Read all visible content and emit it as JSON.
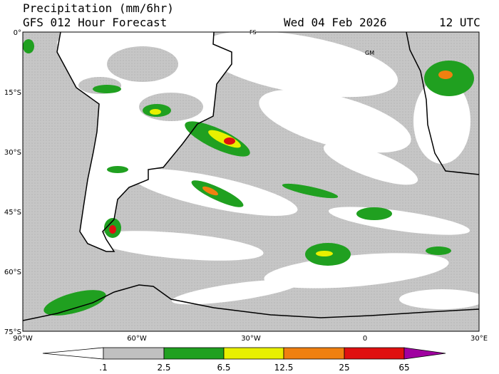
{
  "header": {
    "title": "Precipitation (mm/6hr)",
    "subtitle": "GFS 012 Hour Forecast",
    "date": "Wed 04 Feb 2026",
    "time": "12 UTC"
  },
  "map": {
    "lat_labels": [
      "0°",
      "15°S",
      "30°S",
      "45°S",
      "60°S",
      "75°S"
    ],
    "lon_labels": [
      "90°W",
      "60°W",
      "30°W",
      "0",
      "30°E"
    ],
    "place_labels": [
      "FS",
      "GM"
    ]
  },
  "colorbar": {
    "labels": [
      ".1",
      "2.5",
      "6.5",
      "12.5",
      "25",
      "65"
    ]
  }
}
